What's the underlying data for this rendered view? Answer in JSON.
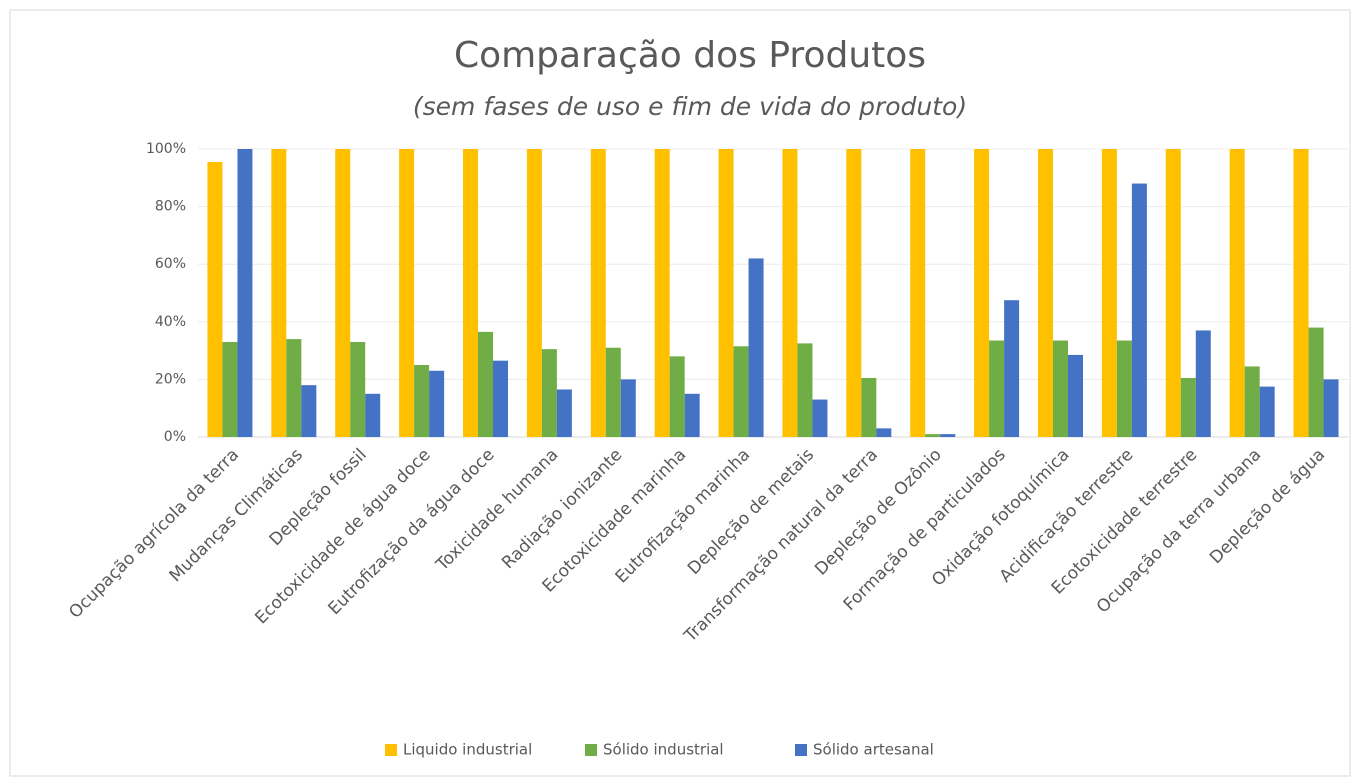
{
  "chart_data": {
    "type": "bar",
    "title": "Comparação dos Produtos",
    "subtitle": "(sem fases de uso e fim de vida do produto)",
    "categories": [
      "Ocupação agrícola da terra",
      "Mudanças Climáticas",
      "Depleção fossil",
      "Ecotoxicidade de água doce",
      "Eutrofização da água doce",
      "Toxicidade humana",
      "Radiação ionizante",
      "Ecotoxicidade marinha",
      "Eutrofização marinha",
      "Depleção de metais",
      "Transformação natural da terra",
      "Depleção de Ozônio",
      "Formação de particulados",
      "Oxidação fotoquímica",
      "Acidificação terrestre",
      "Ecotoxicidade terrestre",
      "Ocupação da terra urbana",
      "Depleção de água"
    ],
    "series": [
      {
        "name": "Liquido industrial",
        "color": "#FFC000",
        "values": [
          95.5,
          100,
          100,
          100,
          100,
          100,
          100,
          100,
          100,
          100,
          100,
          100,
          100,
          100,
          100,
          100,
          100,
          100
        ]
      },
      {
        "name": "Sólido industrial",
        "color": "#70AD47",
        "values": [
          33,
          34,
          33,
          25,
          36.5,
          30.5,
          31,
          28,
          31.5,
          32.5,
          20.5,
          1,
          33.5,
          33.5,
          33.5,
          20.5,
          24.5,
          38
        ]
      },
      {
        "name": "Sólido artesanal",
        "color": "#4472C4",
        "values": [
          100,
          18,
          15,
          23,
          26.5,
          16.5,
          20,
          15,
          62,
          13,
          3,
          1,
          47.5,
          28.5,
          88,
          37,
          17.5,
          20
        ]
      }
    ],
    "ylim": [
      0,
      100
    ],
    "yticks": [
      {
        "value": 0,
        "label": "0%"
      },
      {
        "value": 20,
        "label": "20%"
      },
      {
        "value": 40,
        "label": "40%"
      },
      {
        "value": 60,
        "label": "60%"
      },
      {
        "value": 80,
        "label": "80%"
      },
      {
        "value": 100,
        "label": "100%"
      }
    ],
    "grid": true,
    "legend": "bottom"
  }
}
